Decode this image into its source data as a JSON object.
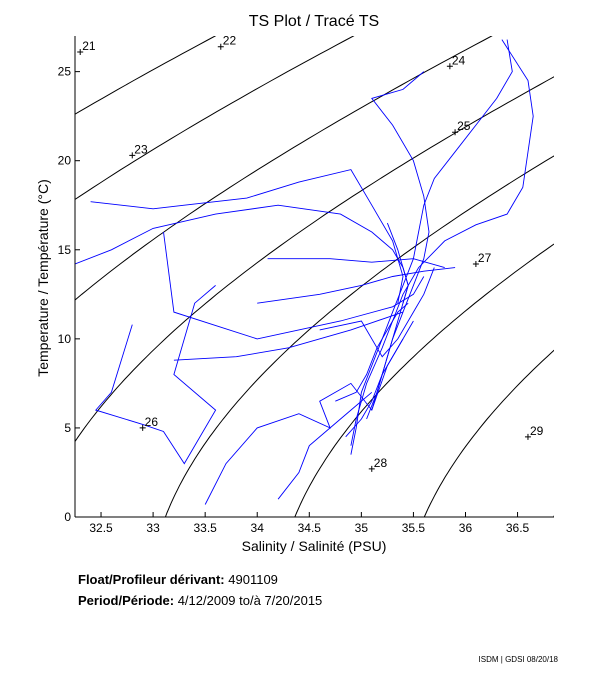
{
  "chart_data": {
    "type": "scatter",
    "title": "TS Plot / Tracé TS",
    "xlabel": "Salinity / Salinité (PSU)",
    "ylabel": "Temperature / Température (°C)",
    "xlim": [
      32.25,
      36.85
    ],
    "ylim": [
      0,
      27
    ],
    "x_ticks": [
      "32.5",
      "33",
      "33.5",
      "34",
      "34.5",
      "35",
      "35.5",
      "36",
      "36.5"
    ],
    "y_ticks": [
      "0",
      "5",
      "10",
      "15",
      "20",
      "25"
    ],
    "grid": false,
    "series_color": "#0000ff",
    "contour_color": "#000000",
    "density_contours": [
      {
        "label": "21",
        "label_at": [
          32.3,
          26.1
        ]
      },
      {
        "label": "22",
        "label_at": [
          33.65,
          26.4
        ]
      },
      {
        "label": "23",
        "label_at": [
          32.8,
          20.3
        ]
      },
      {
        "label": "24",
        "label_at": [
          35.85,
          25.3
        ]
      },
      {
        "label": "25",
        "label_at": [
          35.9,
          21.6
        ]
      },
      {
        "label": "26",
        "label_at": [
          32.9,
          5.0
        ]
      },
      {
        "label": "27",
        "label_at": [
          36.1,
          14.2
        ]
      },
      {
        "label": "28",
        "label_at": [
          35.1,
          2.7
        ]
      },
      {
        "label": "29",
        "label_at": [
          36.6,
          4.5
        ]
      }
    ],
    "series": [
      {
        "values": [
          [
            36.35,
            26.8
          ],
          [
            36.6,
            24.5
          ],
          [
            36.65,
            22.5
          ],
          [
            36.6,
            20.5
          ],
          [
            36.55,
            18.5
          ],
          [
            36.4,
            17.0
          ],
          [
            36.1,
            16.4
          ],
          [
            35.8,
            15.5
          ],
          [
            35.55,
            14.0
          ],
          [
            35.4,
            12.5
          ],
          [
            35.3,
            11.0
          ],
          [
            35.2,
            9.5
          ],
          [
            35.05,
            7.5
          ],
          [
            34.95,
            5.5
          ],
          [
            34.9,
            4.0
          ]
        ]
      },
      {
        "values": [
          [
            36.4,
            26.8
          ],
          [
            36.45,
            25.0
          ],
          [
            36.3,
            23.5
          ],
          [
            36.1,
            22.0
          ],
          [
            35.9,
            20.5
          ],
          [
            35.7,
            19.0
          ],
          [
            35.6,
            17.5
          ],
          [
            35.55,
            16.0
          ],
          [
            35.5,
            14.5
          ],
          [
            35.4,
            13.0
          ],
          [
            35.3,
            11.5
          ],
          [
            35.2,
            10.0
          ],
          [
            35.1,
            8.5
          ],
          [
            35.0,
            7.0
          ],
          [
            34.95,
            5.0
          ],
          [
            34.9,
            3.5
          ]
        ]
      },
      {
        "values": [
          [
            35.6,
            25.0
          ],
          [
            35.4,
            24.0
          ],
          [
            35.1,
            23.5
          ],
          [
            35.3,
            22.0
          ],
          [
            35.5,
            20.0
          ],
          [
            35.6,
            18.0
          ],
          [
            35.65,
            16.0
          ],
          [
            35.6,
            14.5
          ],
          [
            35.5,
            13.0
          ],
          [
            35.4,
            11.5
          ],
          [
            35.3,
            10.0
          ],
          [
            35.2,
            8.0
          ],
          [
            35.1,
            6.0
          ]
        ]
      },
      {
        "values": [
          [
            32.25,
            14.2
          ],
          [
            32.6,
            15.0
          ],
          [
            33.0,
            16.2
          ],
          [
            33.6,
            17.0
          ],
          [
            34.2,
            17.5
          ],
          [
            34.8,
            17.0
          ],
          [
            35.1,
            16.0
          ],
          [
            35.3,
            15.0
          ],
          [
            35.4,
            14.0
          ],
          [
            35.45,
            13.0
          ],
          [
            35.4,
            12.0
          ]
        ]
      },
      {
        "values": [
          [
            32.4,
            17.7
          ],
          [
            33.0,
            17.3
          ],
          [
            33.3,
            17.5
          ],
          [
            33.9,
            17.9
          ],
          [
            34.4,
            18.8
          ],
          [
            34.9,
            19.5
          ],
          [
            35.1,
            17.5
          ],
          [
            35.3,
            15.5
          ],
          [
            35.4,
            13.5
          ],
          [
            35.35,
            12.0
          ]
        ]
      },
      {
        "values": [
          [
            32.8,
            10.8
          ],
          [
            32.6,
            7.0
          ],
          [
            32.45,
            6.0
          ],
          [
            32.9,
            5.2
          ],
          [
            33.1,
            4.8
          ],
          [
            33.3,
            3.0
          ],
          [
            33.6,
            6.0
          ],
          [
            33.2,
            8.0
          ],
          [
            33.4,
            12.0
          ],
          [
            33.6,
            13.0
          ]
        ]
      },
      {
        "values": [
          [
            33.1,
            16.0
          ],
          [
            33.2,
            11.5
          ],
          [
            34.0,
            10.0
          ],
          [
            34.8,
            11.0
          ],
          [
            35.3,
            11.8
          ],
          [
            35.5,
            12.5
          ],
          [
            35.6,
            13.5
          ]
        ]
      },
      {
        "values": [
          [
            33.2,
            8.8
          ],
          [
            33.8,
            9.0
          ],
          [
            34.3,
            9.5
          ],
          [
            34.9,
            10.5
          ],
          [
            35.4,
            11.5
          ]
        ]
      },
      {
        "values": [
          [
            33.5,
            0.7
          ],
          [
            33.7,
            3.0
          ],
          [
            34.0,
            5.0
          ],
          [
            34.4,
            5.8
          ],
          [
            34.7,
            5.0
          ],
          [
            34.6,
            6.5
          ],
          [
            34.9,
            7.5
          ],
          [
            35.1,
            6.0
          ],
          [
            35.25,
            8.5
          ],
          [
            35.4,
            10.0
          ]
        ]
      },
      {
        "values": [
          [
            34.0,
            12.0
          ],
          [
            34.6,
            12.5
          ],
          [
            35.0,
            13.0
          ],
          [
            35.3,
            13.5
          ],
          [
            35.6,
            13.8
          ],
          [
            35.9,
            14.0
          ]
        ]
      },
      {
        "values": [
          [
            34.2,
            1.0
          ],
          [
            34.4,
            2.5
          ],
          [
            34.5,
            4.0
          ],
          [
            34.7,
            5.0
          ],
          [
            34.9,
            6.0
          ],
          [
            35.1,
            7.0
          ]
        ]
      },
      {
        "values": [
          [
            34.1,
            14.5
          ],
          [
            34.7,
            14.5
          ],
          [
            35.1,
            14.3
          ],
          [
            35.5,
            14.5
          ],
          [
            35.8,
            14.0
          ]
        ]
      },
      {
        "values": [
          [
            34.6,
            10.5
          ],
          [
            35.0,
            11.0
          ],
          [
            35.2,
            9.0
          ],
          [
            35.35,
            10.0
          ],
          [
            35.5,
            11.5
          ],
          [
            35.6,
            12.5
          ],
          [
            35.7,
            14.0
          ]
        ]
      },
      {
        "values": [
          [
            34.75,
            6.5
          ],
          [
            34.95,
            7.0
          ],
          [
            35.05,
            8.0
          ],
          [
            35.15,
            9.5
          ],
          [
            35.25,
            10.5
          ],
          [
            35.35,
            11.5
          ],
          [
            35.45,
            12.0
          ]
        ]
      },
      {
        "values": [
          [
            34.85,
            4.5
          ],
          [
            35.0,
            5.5
          ],
          [
            35.1,
            6.5
          ],
          [
            35.2,
            8.0
          ],
          [
            35.3,
            9.0
          ],
          [
            35.4,
            10.0
          ],
          [
            35.5,
            11.0
          ]
        ]
      },
      {
        "values": [
          [
            35.25,
            16.5
          ],
          [
            35.35,
            15.0
          ],
          [
            35.45,
            13.0
          ],
          [
            35.35,
            11.0
          ],
          [
            35.25,
            9.0
          ],
          [
            35.15,
            7.0
          ],
          [
            35.05,
            5.5
          ]
        ]
      }
    ]
  },
  "info": {
    "float_label": "Float/Profileur dérivant:",
    "float_value": "4901109",
    "period_label": "Period/Période:",
    "period_value": "4/12/2009  to/à  7/20/2015"
  },
  "footer": "ISDM | GDSI  08/20/18"
}
